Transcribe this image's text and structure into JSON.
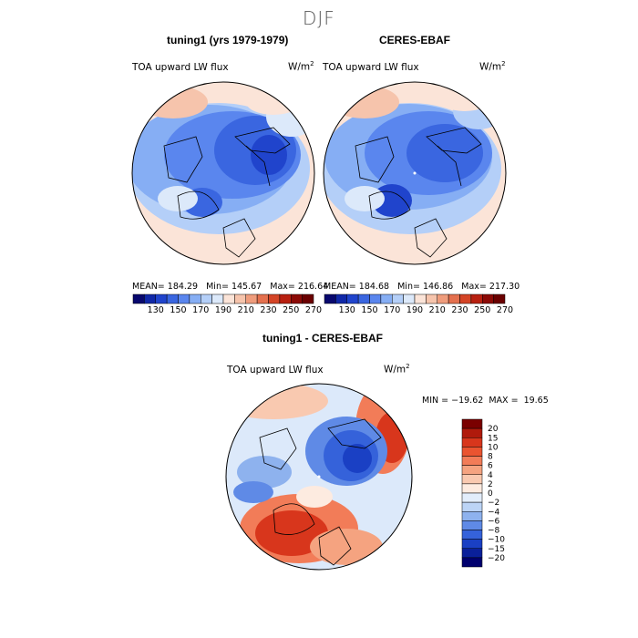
{
  "figure": {
    "season": "DJF",
    "units_base": "W/m",
    "units_exp": "2"
  },
  "chart_data": [
    {
      "type": "heatmap",
      "projection": "north-polar-stereographic",
      "title": "tuning1 (yrs 1979-1979)",
      "variable": "TOA upward LW flux",
      "stats": {
        "mean_label": "MEAN=",
        "mean": "184.29",
        "min_label": "Min=",
        "min": "145.67",
        "max_label": "Max=",
        "max": "216.64"
      }
    },
    {
      "type": "heatmap",
      "projection": "north-polar-stereographic",
      "title": "CERES-EBAF",
      "variable": "TOA upward LW flux",
      "stats": {
        "mean_label": "MEAN=",
        "mean": "184.68",
        "min_label": "Min=",
        "min": "146.86",
        "max_label": "Max=",
        "max": "217.30"
      }
    },
    {
      "type": "heatmap",
      "projection": "north-polar-stereographic",
      "title": "tuning1 - CERES-EBAF",
      "variable": "TOA upward LW flux",
      "stats": {
        "min_label": "MIN =",
        "min": "−19.62",
        "max_label": "MAX =",
        "max": "19.65"
      }
    }
  ],
  "colorbars": {
    "absolute": {
      "labels": [
        "130",
        "150",
        "170",
        "190",
        "210",
        "230",
        "250",
        "270"
      ],
      "colors": [
        "#08086e",
        "#1028a8",
        "#2044cc",
        "#3a66e0",
        "#5a86ee",
        "#86aef4",
        "#b4cff8",
        "#dce9fa",
        "#fbe4d8",
        "#f6c4ac",
        "#ef9c7c",
        "#e4704e",
        "#d44426",
        "#b82010",
        "#8c0a06",
        "#6a0000"
      ]
    },
    "difference": {
      "labels": [
        "20",
        "15",
        "10",
        "8",
        "6",
        "4",
        "2",
        "0",
        "−2",
        "−4",
        "−6",
        "−8",
        "−10",
        "−15",
        "−20"
      ],
      "colors": [
        "#7a0000",
        "#b01a0c",
        "#d8361c",
        "#ea5430",
        "#f27c58",
        "#f5a380",
        "#f9c9b0",
        "#fdebe0",
        "#e2edfb",
        "#bcd4f6",
        "#8eb2ee",
        "#5f8ae6",
        "#3562da",
        "#1a40c4",
        "#0a209a",
        "#00006e"
      ]
    }
  }
}
